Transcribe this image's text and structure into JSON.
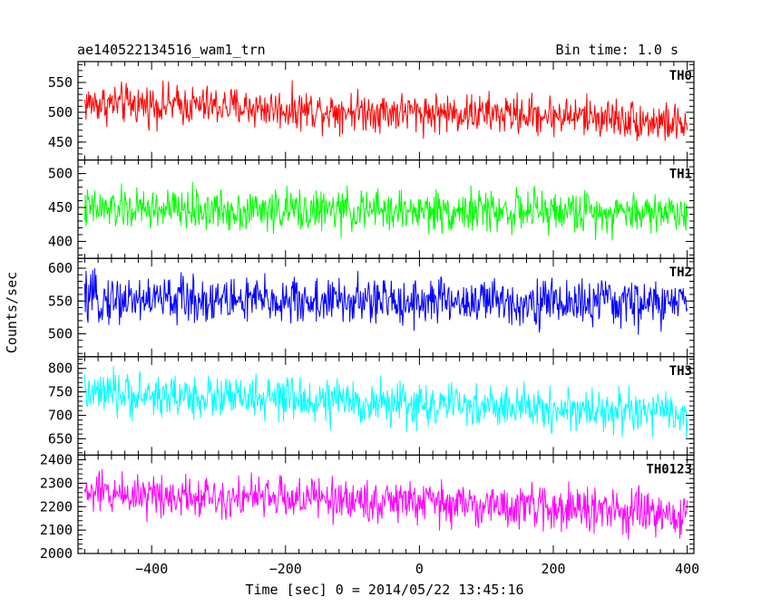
{
  "header": {
    "title": "ae140522134516_wam1_trn",
    "bin_time": "Bin time: 1.0 s"
  },
  "axes": {
    "xlabel": "Time [sec] 0 = 2014/05/22 13:45:16",
    "ylabel": "Counts/sec",
    "xlim": [
      -510,
      410
    ],
    "xticks": [
      -400,
      -200,
      0,
      200,
      400
    ],
    "xtick_labels": [
      "−400",
      "−200",
      "0",
      "200",
      "400"
    ]
  },
  "chart_data": {
    "type": "line",
    "title": "ae140522134516_wam1_trn",
    "xlabel": "Time [sec] 0 = 2014/05/22 13:45:16",
    "ylabel": "Counts/sec",
    "x_range": [
      -500,
      400
    ],
    "bin_time_s": 1.0,
    "grid": false,
    "panels": [
      {
        "name": "TH0",
        "color": "#ff0000",
        "ylim": [
          420,
          585
        ],
        "yticks": [
          450,
          500,
          550
        ],
        "trend": [
          [
            -500,
            515
          ],
          [
            -400,
            513
          ],
          [
            -300,
            510
          ],
          [
            -200,
            505
          ],
          [
            -100,
            503
          ],
          [
            0,
            500
          ],
          [
            100,
            497
          ],
          [
            200,
            495
          ],
          [
            300,
            490
          ],
          [
            400,
            478
          ]
        ],
        "noise_amplitude": 35
      },
      {
        "name": "TH1",
        "color": "#00ff00",
        "ylim": [
          375,
          520
        ],
        "yticks": [
          400,
          450,
          500
        ],
        "trend": [
          [
            -500,
            447
          ],
          [
            -400,
            447
          ],
          [
            -300,
            446
          ],
          [
            -200,
            446
          ],
          [
            -100,
            445
          ],
          [
            0,
            445
          ],
          [
            100,
            445
          ],
          [
            200,
            444
          ],
          [
            300,
            444
          ],
          [
            400,
            443
          ]
        ],
        "noise_amplitude": 32
      },
      {
        "name": "TH2",
        "color": "#0000ff",
        "ylim": [
          465,
          615
        ],
        "yticks": [
          500,
          550,
          600
        ],
        "trend": [
          [
            -500,
            552
          ],
          [
            -400,
            553
          ],
          [
            -300,
            552
          ],
          [
            -200,
            550
          ],
          [
            -100,
            549
          ],
          [
            0,
            550
          ],
          [
            100,
            549
          ],
          [
            200,
            548
          ],
          [
            300,
            547
          ],
          [
            400,
            546
          ]
        ],
        "noise_amplitude": 38
      },
      {
        "name": "TH3",
        "color": "#00ffff",
        "ylim": [
          615,
          825
        ],
        "yticks": [
          650,
          700,
          750,
          800
        ],
        "trend": [
          [
            -500,
            745
          ],
          [
            -400,
            742
          ],
          [
            -300,
            738
          ],
          [
            -200,
            733
          ],
          [
            -100,
            728
          ],
          [
            0,
            722
          ],
          [
            100,
            718
          ],
          [
            200,
            714
          ],
          [
            300,
            710
          ],
          [
            400,
            700
          ]
        ],
        "noise_amplitude": 48
      },
      {
        "name": "TH0123",
        "color": "#ff00ff",
        "ylim": [
          2000,
          2420
        ],
        "yticks": [
          2000,
          2100,
          2200,
          2300,
          2400
        ],
        "trend": [
          [
            -500,
            2258
          ],
          [
            -400,
            2255
          ],
          [
            -300,
            2245
          ],
          [
            -200,
            2238
          ],
          [
            -100,
            2228
          ],
          [
            0,
            2218
          ],
          [
            100,
            2205
          ],
          [
            200,
            2195
          ],
          [
            300,
            2180
          ],
          [
            400,
            2150
          ]
        ],
        "noise_amplitude": 95
      }
    ]
  }
}
